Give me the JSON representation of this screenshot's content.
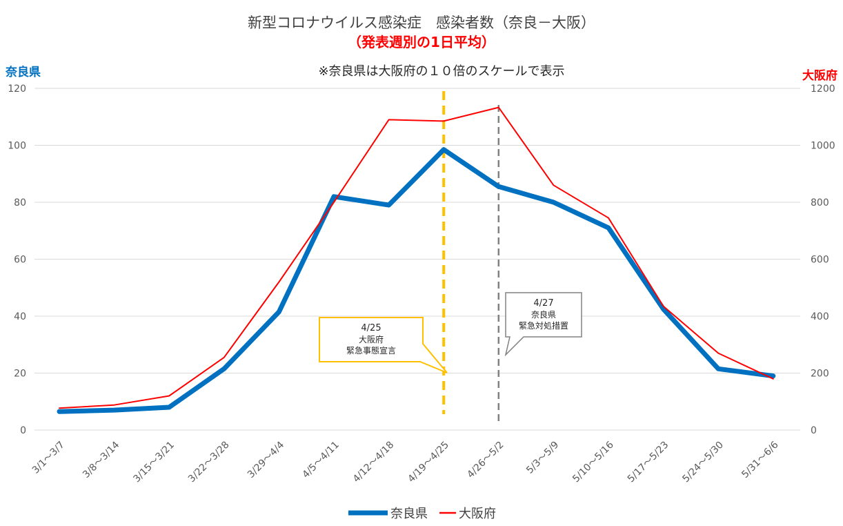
{
  "chart_data": {
    "type": "line",
    "title": "新型コロナウイルス感染症　感染者数（奈良－大阪）",
    "subtitle": "（発表週別の1日平均）",
    "note": "※奈良県は大阪府の１０倍のスケールで表示",
    "categories": [
      "3/1～3/7",
      "3/8～3/14",
      "3/15～3/21",
      "3/22～3/28",
      "3/29～4/4",
      "4/5～4/11",
      "4/12～4/18",
      "4/19～4/25",
      "4/26～5/2",
      "5/3～5/9",
      "5/10～5/16",
      "5/17～5/23",
      "5/24～5/30",
      "5/31～6/6"
    ],
    "y_left": {
      "label": "奈良県",
      "range": [
        0,
        120
      ],
      "ticks": [
        "0",
        "20",
        "40",
        "60",
        "80",
        "100",
        "120"
      ]
    },
    "y_right": {
      "label": "大阪府",
      "range": [
        0,
        1200
      ],
      "ticks": [
        "0",
        "200",
        "400",
        "600",
        "800",
        "1000",
        "1200"
      ]
    },
    "series": [
      {
        "name": "奈良県",
        "axis": "left",
        "color": "#0070C0",
        "values": [
          6.5,
          7,
          8,
          21.5,
          41.5,
          82,
          79,
          98.5,
          85.5,
          80,
          71,
          42.5,
          21.5,
          19
        ]
      },
      {
        "name": "大阪府",
        "axis": "right",
        "color": "#FF0000",
        "values": [
          77,
          88,
          120,
          255,
          520,
          800,
          1090,
          1085,
          1133,
          860,
          745,
          435,
          270,
          180
        ]
      }
    ],
    "grid": true,
    "legend": "bottom-center",
    "annotations": [
      {
        "category": "4/19～4/25",
        "date": "4/25",
        "lines": [
          "大阪府",
          "緊急事態宣言"
        ],
        "color": "#FFC000",
        "line_style": "dashed"
      },
      {
        "category": "4/26～5/2",
        "date": "4/27",
        "lines": [
          "奈良県",
          "緊急対処措置"
        ],
        "color": "#808080",
        "line_style": "dashed"
      }
    ]
  },
  "colors": {
    "title": "#404040",
    "subtitle": "#FF0000",
    "left_axis_label": "#0070C0",
    "right_axis_label": "#FF0000",
    "grid": "#D9D9D9"
  }
}
